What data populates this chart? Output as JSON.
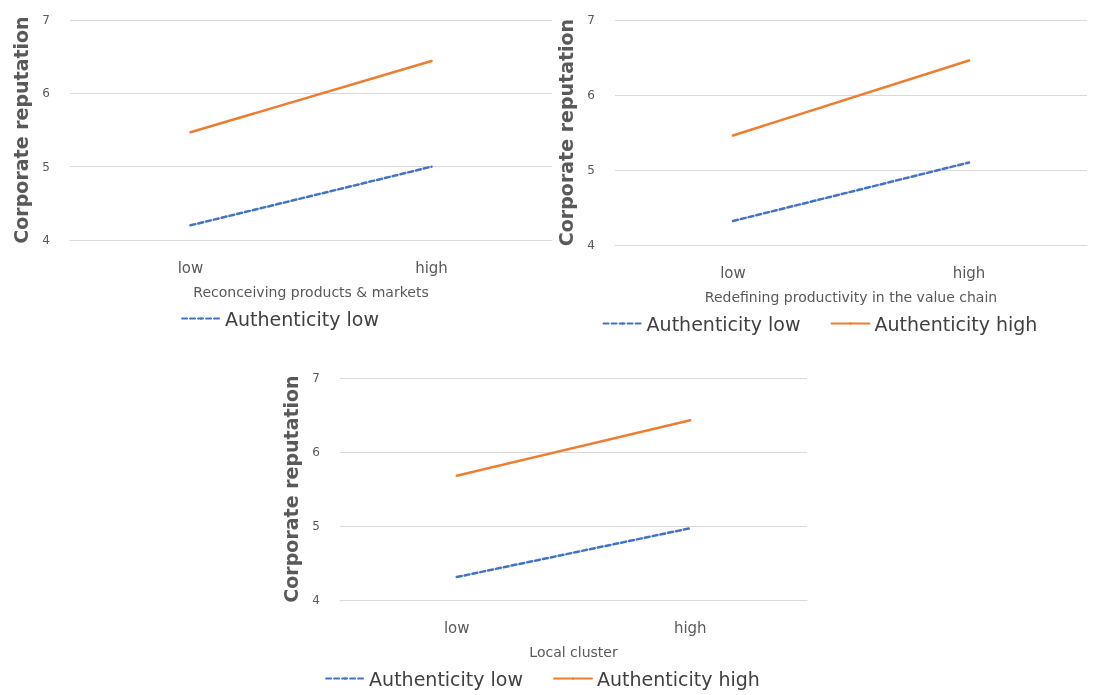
{
  "chart_data": [
    {
      "type": "line",
      "xlabel": "Reconceiving products & markets",
      "ylabel": "Corporate reputation",
      "categories": [
        "low",
        "high"
      ],
      "ylim": [
        4,
        7
      ],
      "yticks": [
        4,
        5,
        6,
        7
      ],
      "grid": "y",
      "legend": "bottom",
      "marker": "none",
      "series": [
        {
          "name": "Authenticity low",
          "color": "#4472c4",
          "line_style": "dashed",
          "values": [
            4.2,
            5.0
          ]
        },
        {
          "color": "#ed7d31",
          "line_style": "solid",
          "values": [
            5.47,
            6.44
          ]
        }
      ]
    },
    {
      "type": "line",
      "xlabel": "Redefining productivity in the value chain",
      "ylabel": "Corporate reputation",
      "categories": [
        "low",
        "high"
      ],
      "ylim": [
        4,
        7
      ],
      "yticks": [
        4,
        5,
        6,
        7
      ],
      "grid": "y",
      "legend": "bottom",
      "marker": "none",
      "series": [
        {
          "name": "Authenticity low",
          "color": "#4472c4",
          "line_style": "dashed",
          "values": [
            4.32,
            5.1
          ]
        },
        {
          "name": "Authenticity high",
          "color": "#ed7d31",
          "line_style": "solid",
          "values": [
            5.46,
            6.46
          ]
        }
      ]
    },
    {
      "type": "line",
      "xlabel": "Local cluster",
      "ylabel": "Corporate reputation",
      "categories": [
        "low",
        "high"
      ],
      "ylim": [
        4,
        7
      ],
      "yticks": [
        4,
        5,
        6,
        7
      ],
      "grid": "y",
      "legend": "bottom",
      "marker": "none",
      "series": [
        {
          "name": "Authenticity low",
          "color": "#4472c4",
          "line_style": "dashed",
          "values": [
            4.31,
            4.97
          ]
        },
        {
          "name": "Authenticity high",
          "color": "#ed7d31",
          "line_style": "solid",
          "values": [
            5.68,
            6.43
          ]
        }
      ]
    }
  ]
}
